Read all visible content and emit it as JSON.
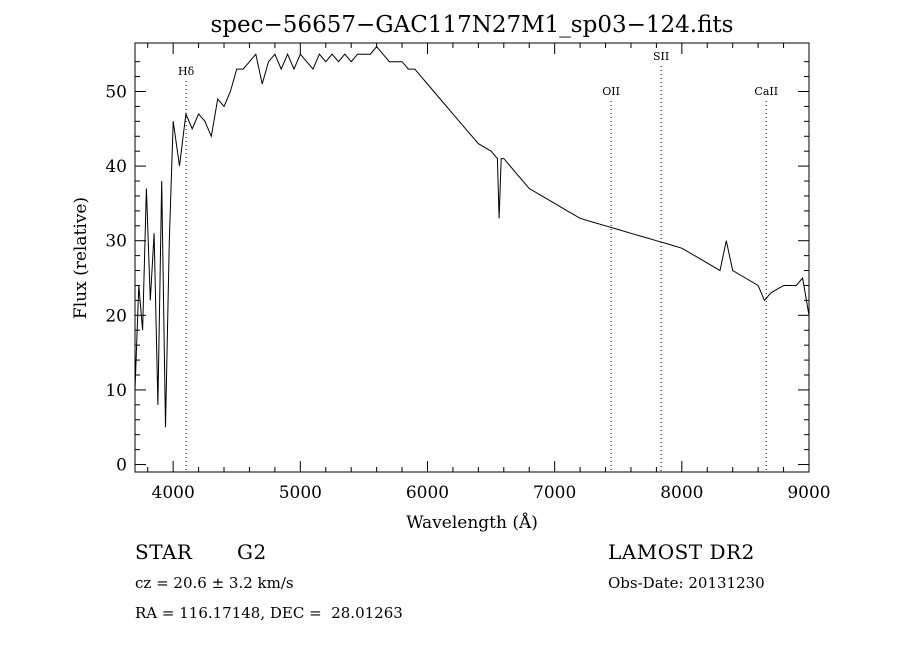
{
  "chart_data": {
    "type": "line",
    "title": "spec−56657−GAC117N27M1_sp03−124.fits",
    "xlabel": "Wavelength (Å)",
    "ylabel": "Flux (relative)",
    "xlim": [
      3700,
      9000
    ],
    "ylim": [
      -1,
      56.5
    ],
    "x_ticks": [
      4000,
      5000,
      6000,
      7000,
      8000,
      9000
    ],
    "y_ticks": [
      0,
      10,
      20,
      30,
      40,
      50
    ],
    "grid": false,
    "line_color": "#000000",
    "series": [
      {
        "x": [
          3700,
          3730,
          3760,
          3790,
          3820,
          3850,
          3880,
          3910,
          3940,
          3970,
          4000,
          4050,
          4100,
          4150,
          4200,
          4250,
          4300,
          4350,
          4400,
          4450,
          4500,
          4550,
          4600,
          4650,
          4700,
          4750,
          4800,
          4850,
          4900,
          4950,
          5000,
          5050,
          5100,
          5150,
          5200,
          5250,
          5300,
          5350,
          5400,
          5450,
          5500,
          5550,
          5600,
          5650,
          5700,
          5750,
          5800,
          5850,
          5900,
          5950,
          6000,
          6100,
          6200,
          6300,
          6400,
          6500,
          6550,
          6563,
          6580,
          6600,
          6700,
          6800,
          6900,
          7000,
          7100,
          7200,
          7300,
          7400,
          7500,
          7600,
          7700,
          7800,
          7900,
          8000,
          8100,
          8200,
          8300,
          8350,
          8400,
          8500,
          8600,
          8650,
          8700,
          8800,
          8900,
          8950,
          9000
        ],
        "y": [
          10,
          24,
          18,
          37,
          22,
          31,
          8,
          38,
          5,
          30,
          46,
          40,
          47,
          45,
          47,
          46,
          44,
          49,
          48,
          50,
          53,
          53,
          54,
          55,
          51,
          54,
          55,
          53,
          55,
          53,
          55,
          54,
          53,
          55,
          54,
          55,
          54,
          55,
          54,
          55,
          55,
          55,
          56,
          55,
          54,
          54,
          54,
          53,
          53,
          52,
          51,
          49,
          47,
          45,
          43,
          42,
          41,
          33,
          41,
          41,
          39,
          37,
          36,
          35,
          34,
          33,
          32.5,
          32,
          31.5,
          31,
          30.5,
          30,
          29.5,
          29,
          28,
          27,
          26,
          30,
          26,
          25,
          24,
          22,
          23,
          24,
          24,
          25,
          20
        ]
      }
    ],
    "spectral_lines": [
      {
        "label": "Hδ",
        "x": 4102
      },
      {
        "label": "OII",
        "x": 7444
      },
      {
        "label": "SII",
        "x": 7837
      },
      {
        "label": "CaII",
        "x": 8664
      }
    ]
  },
  "info": {
    "class_label": "STAR",
    "subclass": "G2",
    "redshift": "cz = 20.6 ± 3.2 km/s",
    "coords": "RA = 116.17148, DEC =  28.01263",
    "survey": "LAMOST DR2",
    "obs_date": "Obs-Date: 20131230"
  }
}
